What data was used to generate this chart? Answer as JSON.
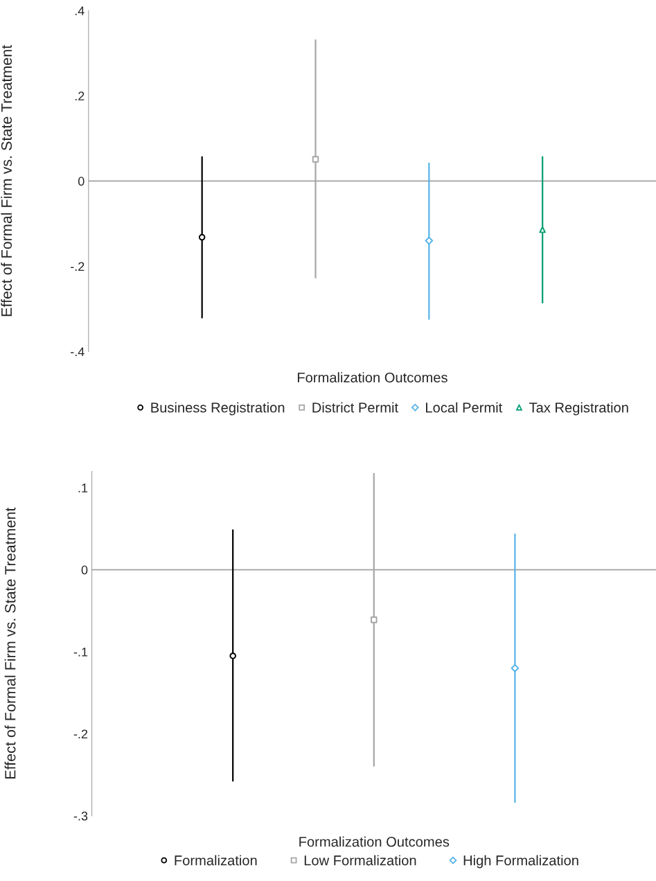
{
  "chart_data": [
    {
      "type": "scatter",
      "xlabel": "Formalization Outcomes",
      "ylabel": "Effect of Formal Firm vs. State Treatment",
      "categories": [
        null,
        null,
        null,
        null
      ],
      "series": [
        {
          "name": "Business Registration",
          "color": "#000000",
          "marker": "circle",
          "values": [
            -0.132,
            null,
            null,
            null
          ],
          "errors": [
            [
              -0.322,
              0.058
            ],
            null,
            null,
            null
          ]
        },
        {
          "name": "District Permit",
          "color": "#a6a6a6",
          "marker": "square",
          "values": [
            null,
            0.051,
            null,
            null
          ],
          "errors": [
            null,
            [
              -0.228,
              0.332
            ],
            null,
            null
          ]
        },
        {
          "name": "Local Permit",
          "color": "#56b4e9",
          "marker": "diamond",
          "values": [
            null,
            null,
            -0.14,
            null
          ],
          "errors": [
            null,
            null,
            [
              -0.325,
              0.043
            ],
            null
          ]
        },
        {
          "name": "Tax Registration",
          "color": "#009e73",
          "marker": "triangle",
          "values": [
            null,
            null,
            null,
            -0.114
          ],
          "errors": [
            null,
            null,
            null,
            [
              -0.287,
              0.058
            ]
          ]
        }
      ],
      "ylim": [
        -0.4,
        0.4
      ],
      "yticks": [
        {
          "value": 0.4,
          "label": ".4"
        },
        {
          "value": 0.2,
          "label": ".2"
        },
        0,
        {
          "value": -0.2,
          "label": "-.2"
        },
        {
          "value": -0.4,
          "label": "-.4"
        }
      ],
      "ref_lines": [
        {
          "axis": "y",
          "value": 0,
          "color": "#a0a0a0"
        }
      ],
      "legend": "bottom",
      "grid": false
    },
    {
      "type": "scatter",
      "xlabel": "Formalization Outcomes",
      "ylabel": "Effect of Formal Firm vs. State Treatment",
      "categories": [
        null,
        null,
        null
      ],
      "series": [
        {
          "name": "Formalization",
          "color": "#000000",
          "marker": "circle",
          "values": [
            -0.105,
            null,
            null
          ],
          "errors": [
            [
              -0.258,
              0.049
            ],
            null,
            null
          ]
        },
        {
          "name": "Low Formalization",
          "color": "#a6a6a6",
          "marker": "square",
          "values": [
            null,
            -0.061,
            null
          ],
          "errors": [
            null,
            [
              -0.24,
              0.118
            ],
            null
          ]
        },
        {
          "name": "High Formalization",
          "color": "#56b4e9",
          "marker": "diamond",
          "values": [
            null,
            null,
            -0.12
          ],
          "errors": [
            null,
            null,
            [
              -0.284,
              0.044
            ]
          ]
        }
      ],
      "ylim": [
        -0.3,
        0.12
      ],
      "yticks": [
        {
          "value": 0.1,
          "label": ".1"
        },
        0,
        {
          "value": -0.1,
          "label": "-.1"
        },
        {
          "value": -0.2,
          "label": "-.2"
        },
        {
          "value": -0.3,
          "label": "-.3"
        }
      ],
      "ref_lines": [
        {
          "axis": "y",
          "value": 0,
          "color": "#a0a0a0"
        }
      ],
      "legend": "bottom",
      "grid": false
    }
  ]
}
